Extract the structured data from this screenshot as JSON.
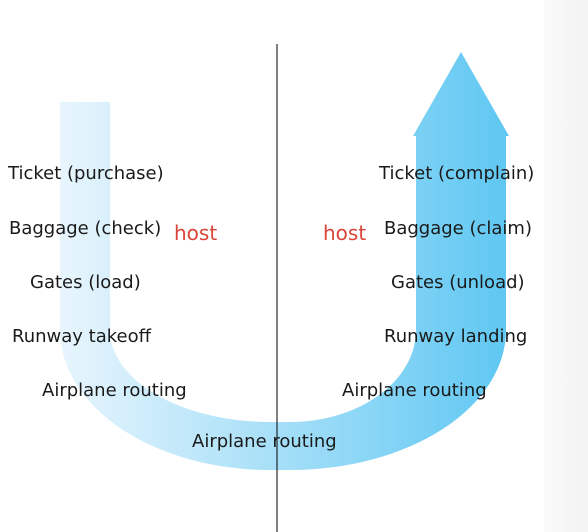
{
  "colors": {
    "arrow_light": "#e8f5fd",
    "arrow_dark": "#5ec7f2",
    "divider": "#000000",
    "host_text": "#d9453b"
  },
  "left": {
    "host_label": "host",
    "items": [
      "Ticket (purchase)",
      "Baggage (check)",
      "Gates (load)",
      "Runway takeoff",
      "Airplane routing"
    ]
  },
  "right": {
    "host_label": "host",
    "items": [
      "Ticket (complain)",
      "Baggage (claim)",
      "Gates (unload)",
      "Runway landing",
      "Airplane routing"
    ]
  },
  "bottom": {
    "label": "Airplane routing"
  }
}
